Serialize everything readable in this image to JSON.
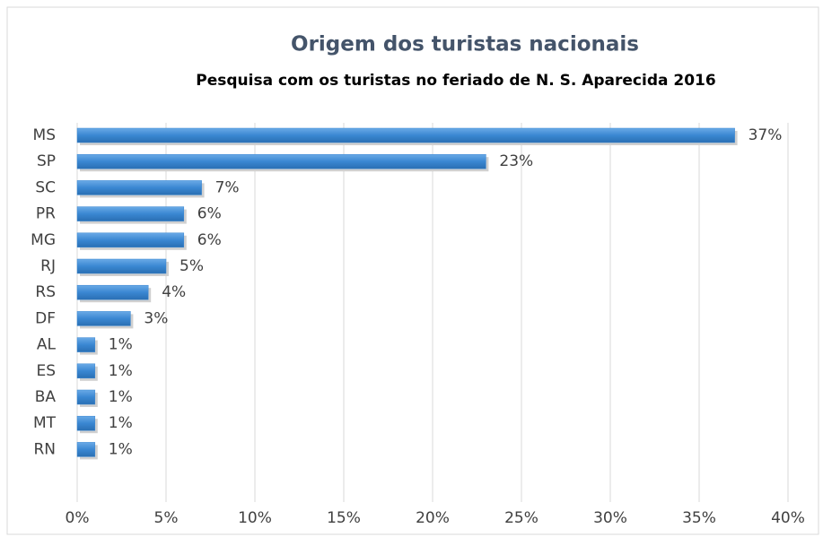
{
  "chart_data": {
    "type": "barh",
    "title": "Origem dos turistas nacionais",
    "subtitle": "Pesquisa com os turistas no feriado de N. S. Aparecida 2016",
    "categories": [
      "MS",
      "SP",
      "SC",
      "PR",
      "MG",
      "RJ",
      "RS",
      "DF",
      "AL",
      "ES",
      "BA",
      "MT",
      "RN"
    ],
    "values": [
      37,
      23,
      7,
      6,
      6,
      5,
      4,
      3,
      1,
      1,
      1,
      1,
      1
    ],
    "value_labels": [
      "37%",
      "23%",
      "7%",
      "6%",
      "6%",
      "5%",
      "4%",
      "3%",
      "1%",
      "1%",
      "1%",
      "1%",
      "1%"
    ],
    "color": "#3a87d2",
    "xlim": [
      0,
      40
    ],
    "xticks": [
      {
        "value": 0,
        "label": "0%"
      },
      {
        "value": 5,
        "label": "5%"
      },
      {
        "value": 10,
        "label": "10%"
      },
      {
        "value": 15,
        "label": "15%"
      },
      {
        "value": 20,
        "label": "20%"
      },
      {
        "value": 25,
        "label": "25%"
      },
      {
        "value": 30,
        "label": "30%"
      },
      {
        "value": 35,
        "label": "35%"
      },
      {
        "value": 40,
        "label": "40%"
      }
    ],
    "grid": true
  }
}
